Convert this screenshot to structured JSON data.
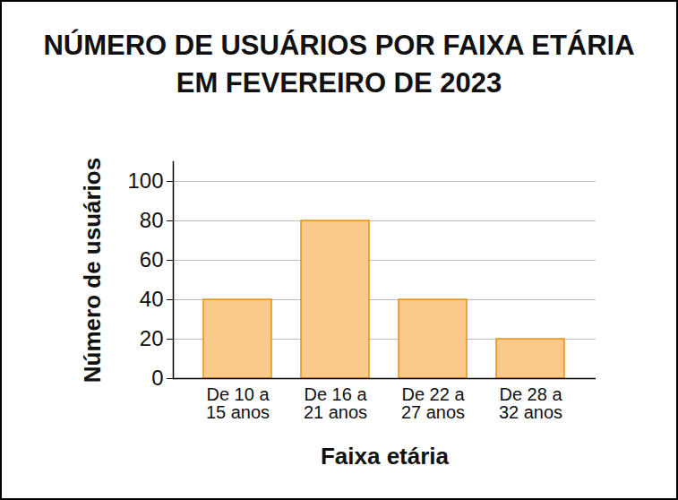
{
  "chart_data": {
    "type": "bar",
    "title": "NÚMERO DE USUÁRIOS POR FAIXA ETÁRIA EM FEVEREIRO DE 2023",
    "x_label": "Faixa etária",
    "y_label": "Número de usuários",
    "categories": [
      "De 10 a 15 anos",
      "De 16 a 21 anos",
      "De 22 a 27 anos",
      "De 28 a 32 anos"
    ],
    "values": [
      40,
      80,
      40,
      20
    ],
    "color": "#fbc98a",
    "ylim": [
      0,
      110
    ],
    "yticks": [
      0,
      20,
      40,
      60,
      80,
      100
    ],
    "grid": true
  }
}
